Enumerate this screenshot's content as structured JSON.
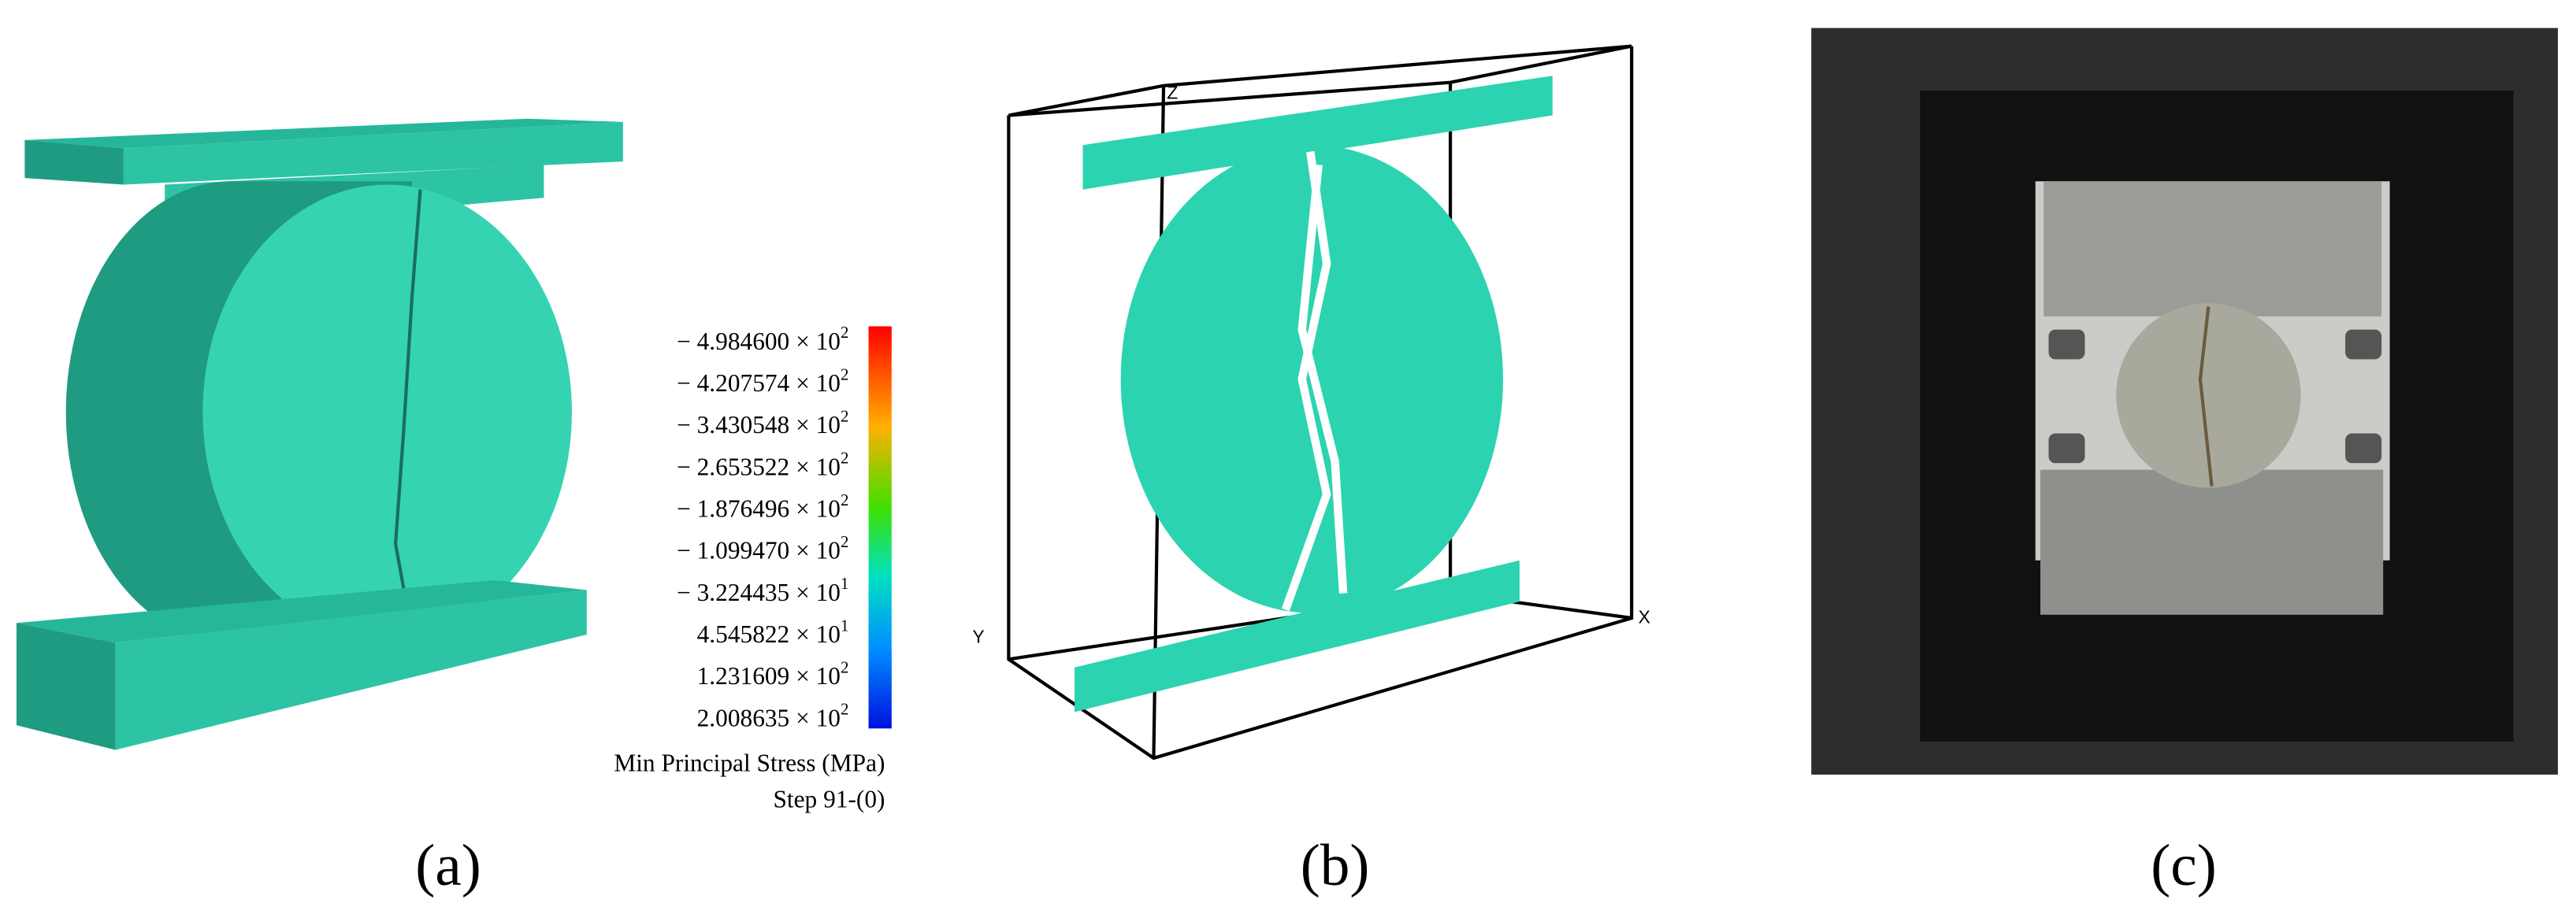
{
  "panels": [
    {
      "label": "(a)",
      "legend": {
        "entries": [
          {
            "coef": "− 4.984600 × 10",
            "exp": "2"
          },
          {
            "coef": "− 4.207574 × 10",
            "exp": "2"
          },
          {
            "coef": "− 3.430548 × 10",
            "exp": "2"
          },
          {
            "coef": "− 2.653522 × 10",
            "exp": "2"
          },
          {
            "coef": "− 1.876496 × 10",
            "exp": "2"
          },
          {
            "coef": "− 1.099470 × 10",
            "exp": "2"
          },
          {
            "coef": "− 3.224435 × 10",
            "exp": "1"
          },
          {
            "coef": "4.545822 × 10",
            "exp": "1"
          },
          {
            "coef": "1.231609 × 10",
            "exp": "2"
          },
          {
            "coef": "2.008635 × 10",
            "exp": "2"
          }
        ],
        "caption": "Min Principal Stress (MPa)",
        "step": "Step 91-(0)"
      }
    },
    {
      "label": "(b)",
      "axes": {
        "z": "Z",
        "y": "Y",
        "x": "X"
      }
    },
    {
      "label": "(c)"
    }
  ]
}
